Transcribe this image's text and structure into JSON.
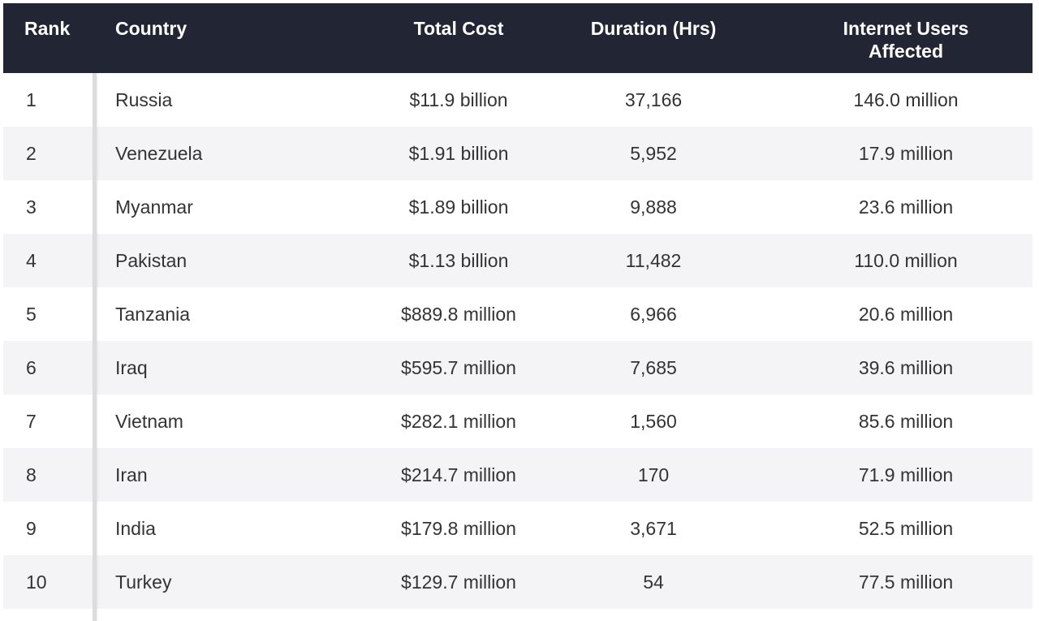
{
  "chart_data": {
    "type": "table",
    "columns": [
      "Rank",
      "Country",
      "Total Cost",
      "Duration (Hrs)",
      "Internet Users Affected"
    ],
    "rows": [
      [
        "1",
        "Russia",
        "$11.9 billion",
        "37,166",
        "146.0 million"
      ],
      [
        "2",
        "Venezuela",
        "$1.91 billion",
        "5,952",
        "17.9 million"
      ],
      [
        "3",
        "Myanmar",
        "$1.89 billion",
        "9,888",
        "23.6 million"
      ],
      [
        "4",
        "Pakistan",
        "$1.13 billion",
        "11,482",
        "110.0 million"
      ],
      [
        "5",
        "Tanzania",
        "$889.8 million",
        "6,966",
        "20.6 million"
      ],
      [
        "6",
        "Iraq",
        "$595.7 million",
        "7,685",
        "39.6 million"
      ],
      [
        "7",
        "Vietnam",
        "$282.1 million",
        "1,560",
        "85.6 million"
      ],
      [
        "8",
        "Iran",
        "$214.7 million",
        "170",
        "71.9 million"
      ],
      [
        "9",
        "India",
        "$179.8 million",
        "3,671",
        "52.5 million"
      ],
      [
        "10",
        "Turkey",
        "$129.7 million",
        "54",
        "77.5 million"
      ]
    ]
  },
  "colors": {
    "header_bg": "#222634",
    "header_text": "#ffffff",
    "alt_row_bg": "#f4f4f6",
    "cell_text": "#333333",
    "divider": "#dcdcdc"
  }
}
